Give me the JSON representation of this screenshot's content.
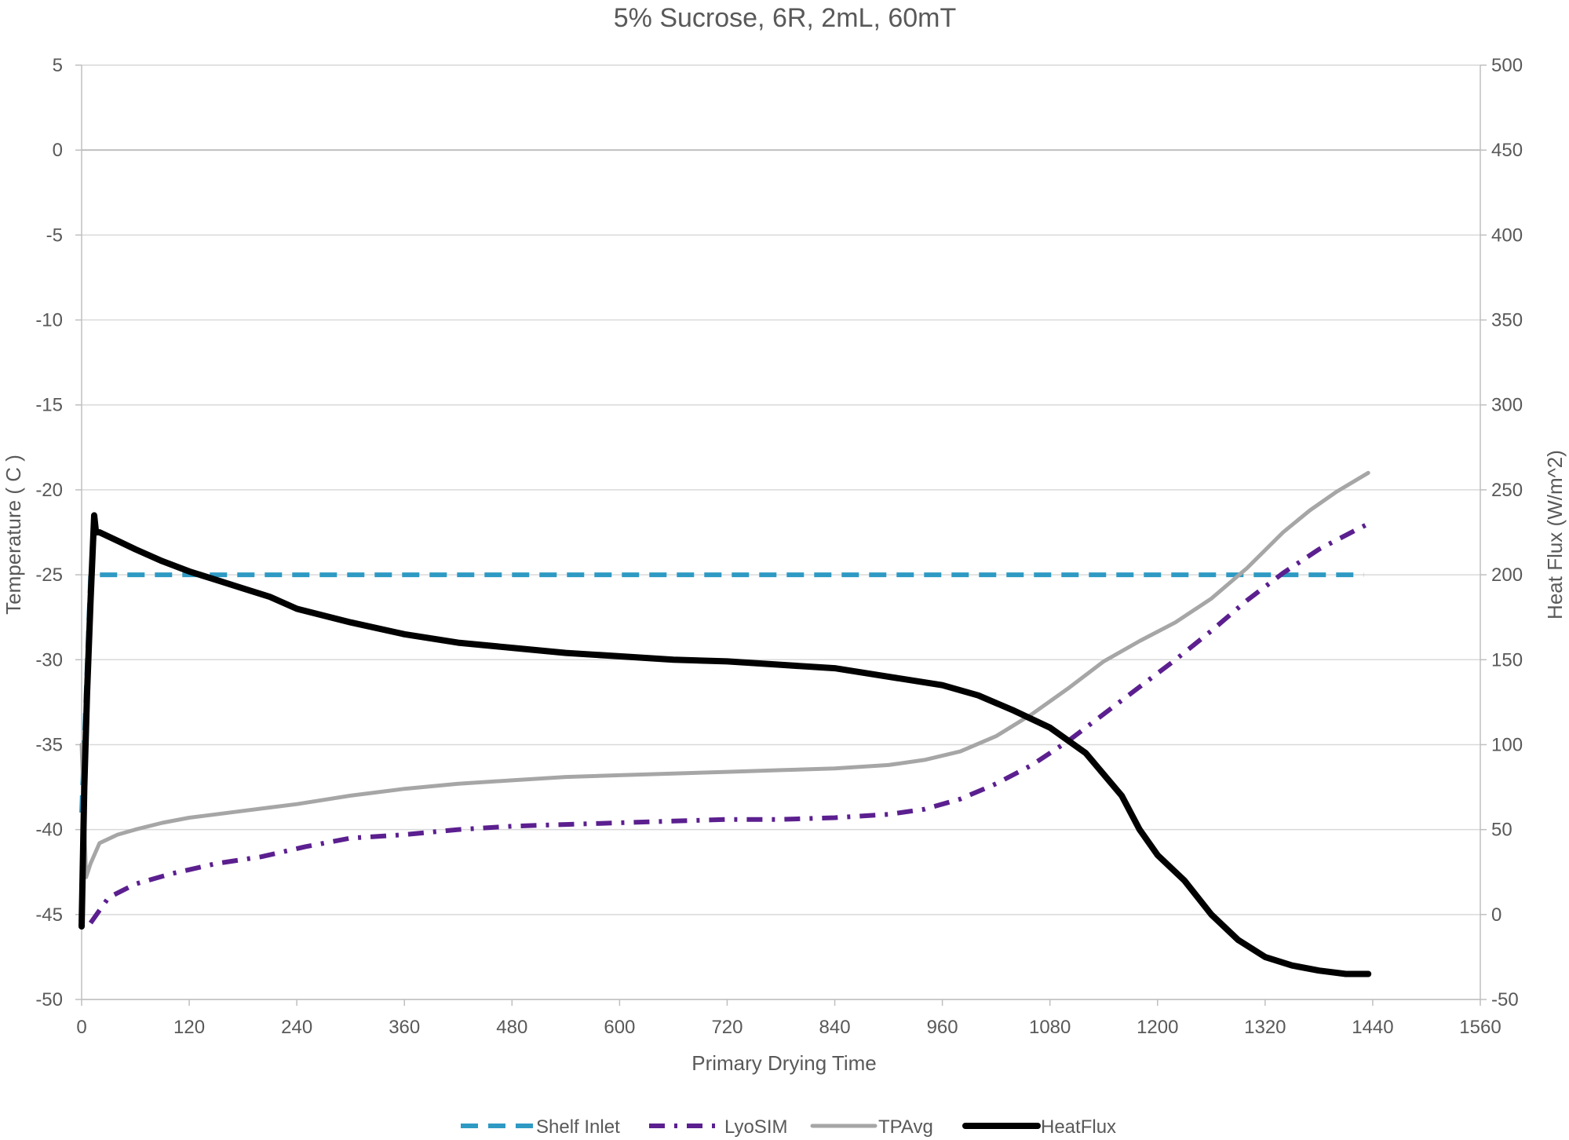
{
  "chart_data": {
    "type": "line",
    "title": "5% Sucrose, 6R, 2mL, 60mT",
    "xlabel": "Primary Drying Time",
    "ylabel": "Temperature ( C )",
    "y2label": "Heat Flux (W/m^2)",
    "xlim": [
      0,
      1560
    ],
    "ylim": [
      -50,
      5
    ],
    "y2lim": [
      -50,
      500
    ],
    "xticks": [
      "0",
      "120",
      "240",
      "360",
      "480",
      "600",
      "720",
      "840",
      "960",
      "1080",
      "1200",
      "1320",
      "1440",
      "1560"
    ],
    "yticks": [
      "5",
      "0",
      "-5",
      "-10",
      "-15",
      "-20",
      "-25",
      "-30",
      "-35",
      "-40",
      "-45",
      "-50"
    ],
    "y2ticks": [
      "500",
      "450",
      "400",
      "350",
      "300",
      "250",
      "200",
      "150",
      "100",
      "50",
      "0",
      "-50"
    ],
    "grid": true,
    "legend_position": "bottom",
    "series": [
      {
        "name": "Shelf Inlet",
        "axis": "left",
        "color": "#2E9AC4",
        "style": "dashed",
        "x": [
          0,
          10,
          20,
          60,
          120,
          200,
          300,
          400,
          500,
          600,
          700,
          800,
          900,
          1000,
          1100,
          1200,
          1300,
          1400,
          1430
        ],
        "y": [
          -39,
          -25,
          -25,
          -25,
          -25,
          -25,
          -25,
          -25,
          -25,
          -25,
          -25,
          -25,
          -25,
          -25,
          -25,
          -25,
          -25,
          -25,
          -25
        ]
      },
      {
        "name": "LyoSIM",
        "axis": "left",
        "color": "#5B1F8F",
        "style": "dashdot",
        "x": [
          10,
          30,
          60,
          100,
          150,
          200,
          250,
          300,
          360,
          420,
          480,
          540,
          600,
          660,
          720,
          780,
          840,
          900,
          940,
          980,
          1020,
          1060,
          1100,
          1140,
          1180,
          1220,
          1260,
          1300,
          1340,
          1380,
          1420,
          1435
        ],
        "y": [
          -45.5,
          -44,
          -43.2,
          -42.6,
          -42,
          -41.6,
          -41,
          -40.5,
          -40.3,
          -40,
          -39.8,
          -39.7,
          -39.6,
          -39.5,
          -39.4,
          -39.4,
          -39.3,
          -39.1,
          -38.8,
          -38.2,
          -37.3,
          -36.2,
          -34.8,
          -33.2,
          -31.6,
          -30,
          -28.3,
          -26.5,
          -24.9,
          -23.5,
          -22.4,
          -22
        ]
      },
      {
        "name": "TPAvg",
        "axis": "left",
        "color": "#A6A6A6",
        "style": "solid",
        "x": [
          0,
          5,
          10,
          20,
          40,
          60,
          90,
          120,
          150,
          180,
          210,
          240,
          300,
          360,
          420,
          480,
          540,
          600,
          660,
          720,
          780,
          840,
          900,
          940,
          980,
          1020,
          1060,
          1100,
          1140,
          1180,
          1220,
          1260,
          1300,
          1340,
          1370,
          1400,
          1435
        ],
        "y": [
          -35,
          -42.8,
          -42,
          -40.8,
          -40.3,
          -40,
          -39.6,
          -39.3,
          -39.1,
          -38.9,
          -38.7,
          -38.5,
          -38,
          -37.6,
          -37.3,
          -37.1,
          -36.9,
          -36.8,
          -36.7,
          -36.6,
          -36.5,
          -36.4,
          -36.2,
          -35.9,
          -35.4,
          -34.5,
          -33.2,
          -31.7,
          -30.1,
          -28.9,
          -27.8,
          -26.4,
          -24.6,
          -22.5,
          -21.2,
          -20.1,
          -19
        ]
      },
      {
        "name": "HeatFlux",
        "axis": "right",
        "color": "#000000",
        "style": "solid",
        "x": [
          0,
          3,
          6,
          10,
          14,
          16,
          20,
          40,
          60,
          90,
          120,
          150,
          180,
          210,
          240,
          300,
          360,
          420,
          480,
          540,
          600,
          660,
          720,
          780,
          840,
          900,
          960,
          1000,
          1040,
          1080,
          1120,
          1160,
          1180,
          1200,
          1230,
          1260,
          1290,
          1320,
          1350,
          1380,
          1410,
          1435
        ],
        "y": [
          -7,
          75,
          130,
          185,
          235,
          225,
          225,
          220,
          215,
          208,
          202,
          197,
          192,
          187,
          180,
          172,
          165,
          160,
          157,
          154,
          152,
          150,
          149,
          147,
          145,
          140,
          135,
          129,
          120,
          110,
          95,
          70,
          50,
          35,
          20,
          0,
          -15,
          -25,
          -30,
          -33,
          -35,
          -35
        ]
      }
    ]
  }
}
